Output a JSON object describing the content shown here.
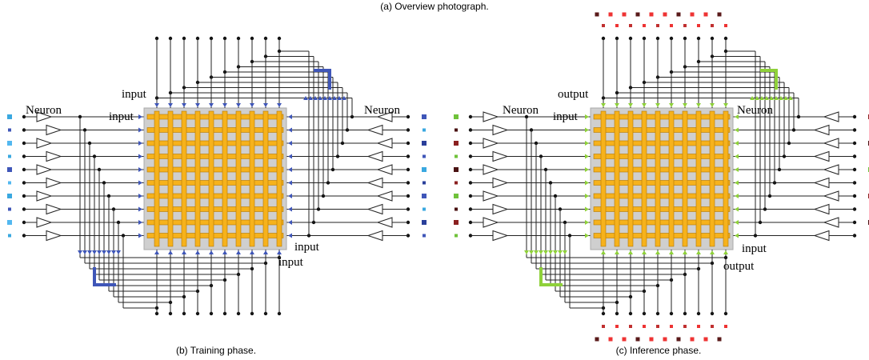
{
  "caption_top": "(a) Overview photograph.",
  "panels": [
    {
      "caption": "(b) Training phase.",
      "labels": {
        "top_outer": "input",
        "top_inner": "input",
        "left_neuron": "Neuron",
        "right_neuron": "Neuron",
        "bottom_inner": "input",
        "bottom_outer": "input"
      }
    },
    {
      "caption": "(c) Inference phase.",
      "labels": {
        "top_outer": "output",
        "top_inner": "input",
        "left_neuron": "Neuron",
        "right_neuron": "Neuron",
        "bottom_inner": "input",
        "bottom_outer": "output"
      }
    }
  ]
}
